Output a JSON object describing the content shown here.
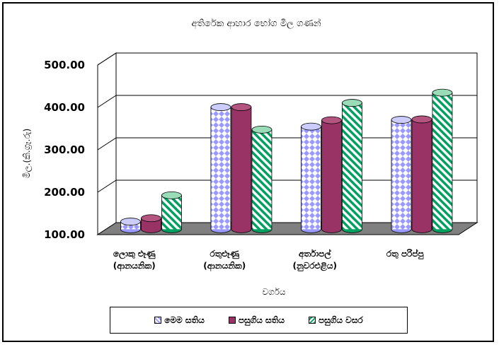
{
  "chart_data": {
    "type": "bar",
    "title": "අතිරේක ආහාර භෝග මිල ගණන්",
    "xlabel": "වර්ගය",
    "ylabel": "මිල.(කි.ග්‍රෑ.රු)",
    "ylim": [
      100,
      500
    ],
    "yticks": [
      "100.00",
      "200.00",
      "300.00",
      "400.00",
      "500.00"
    ],
    "grid": true,
    "legend_position": "bottom",
    "categories": [
      [
        "ලොකු ළූණු",
        "(ආනයනික)"
      ],
      [
        "රතුළූණු",
        "(ආනයනික)"
      ],
      [
        "අර්තාපල්",
        "(නුවරඑළිය)"
      ],
      [
        "රතු පරිප්පු"
      ]
    ],
    "series": [
      {
        "name": "මෙම සතිය",
        "values": [
          118,
          388,
          342,
          358
        ],
        "color": "#9999ff",
        "pattern": "diamonds"
      },
      {
        "name": "පසුගිය සතිය",
        "values": [
          126,
          388,
          357,
          359
        ],
        "color": "#993366",
        "pattern": "solid"
      },
      {
        "name": "පසුගිය වසර",
        "values": [
          180,
          335,
          398,
          422
        ],
        "color": "#00a060",
        "pattern": "stripes"
      }
    ]
  }
}
